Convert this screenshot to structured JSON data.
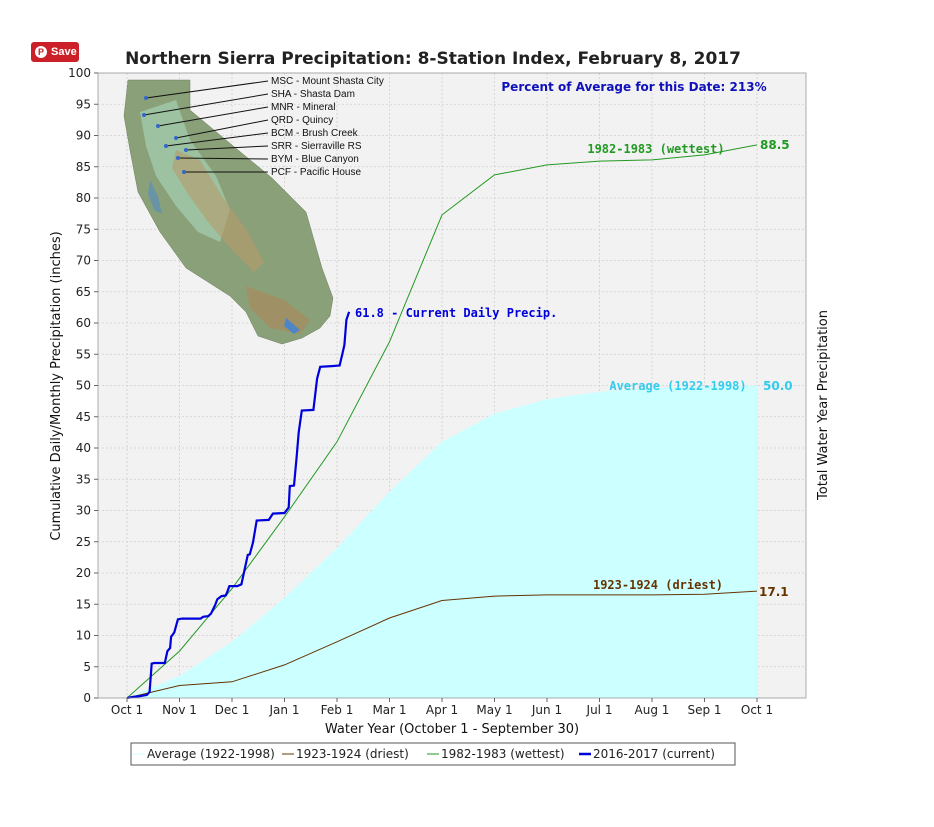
{
  "save_button": {
    "label": "Save",
    "icon": "pinterest-icon"
  },
  "chart_data": {
    "type": "line",
    "title": "Northern Sierra Precipitation: 8-Station Index, February 8, 2017",
    "xlabel": "Water Year (October 1 - September 30)",
    "ylabel": "Cumulative Daily/Monthly Precipitation (inches)",
    "ylabel_right": "Total Water Year Precipitation",
    "x_ticks": [
      "Oct 1",
      "Nov 1",
      "Dec 1",
      "Jan 1",
      "Feb 1",
      "Mar 1",
      "Apr 1",
      "May 1",
      "Jun 1",
      "Jul 1",
      "Aug 1",
      "Sep 1",
      "Oct 1"
    ],
    "ylim": [
      0,
      100
    ],
    "y_ticks": [
      0,
      5,
      10,
      15,
      20,
      25,
      30,
      35,
      40,
      45,
      50,
      55,
      60,
      65,
      70,
      75,
      80,
      85,
      90,
      95,
      100
    ],
    "grid": true,
    "percent_annotation": "Percent of Average for this Date: 213%",
    "series": [
      {
        "name": "Average (1922-1998)",
        "kind": "area",
        "color": "#ccffff",
        "label_color": "#33ccee",
        "curve_label": "Average (1922-1998)",
        "end_label": "50.0",
        "points": [
          [
            0,
            0
          ],
          [
            1,
            3.5
          ],
          [
            2,
            9
          ],
          [
            3,
            16
          ],
          [
            4,
            24
          ],
          [
            5,
            33
          ],
          [
            6,
            41
          ],
          [
            7,
            45.5
          ],
          [
            8,
            47.8
          ],
          [
            9,
            49
          ],
          [
            10,
            49.6
          ],
          [
            11,
            49.9
          ],
          [
            12,
            50.0
          ]
        ]
      },
      {
        "name": "1923-1924 (driest)",
        "kind": "line",
        "color": "#663300",
        "curve_label": "1923-1924 (driest)",
        "end_label": "17.1",
        "points": [
          [
            0,
            0
          ],
          [
            1,
            2
          ],
          [
            2,
            2.6
          ],
          [
            3,
            5.3
          ],
          [
            4,
            9
          ],
          [
            5,
            12.8
          ],
          [
            6,
            15.6
          ],
          [
            7,
            16.3
          ],
          [
            8,
            16.5
          ],
          [
            9,
            16.5
          ],
          [
            10,
            16.5
          ],
          [
            11,
            16.6
          ],
          [
            12,
            17.1
          ]
        ]
      },
      {
        "name": "1982-1983 (wettest)",
        "kind": "line",
        "color": "#229922",
        "curve_label": "1982-1983 (wettest)",
        "end_label": "88.5",
        "points": [
          [
            0,
            0
          ],
          [
            1,
            7.5
          ],
          [
            2,
            17.5
          ],
          [
            3,
            29
          ],
          [
            4,
            41
          ],
          [
            5,
            57
          ],
          [
            6,
            77.3
          ],
          [
            7,
            83.7
          ],
          [
            8,
            85.3
          ],
          [
            9,
            85.9
          ],
          [
            10,
            86.1
          ],
          [
            11,
            86.9
          ],
          [
            12,
            88.5
          ]
        ]
      },
      {
        "name": "2016-2017 (current)",
        "kind": "line",
        "color": "#0000dd",
        "curve_label": "61.8 -  Current Daily Precip.",
        "points": [
          [
            0,
            0
          ],
          [
            0.12,
            0.2
          ],
          [
            0.25,
            0.3
          ],
          [
            0.38,
            0.5
          ],
          [
            0.43,
            1.0
          ],
          [
            0.47,
            5.5
          ],
          [
            0.52,
            5.6
          ],
          [
            0.72,
            5.6
          ],
          [
            0.77,
            7.5
          ],
          [
            0.82,
            8.0
          ],
          [
            0.84,
            9.8
          ],
          [
            0.9,
            10.5
          ],
          [
            0.97,
            12.6
          ],
          [
            1.05,
            12.7
          ],
          [
            1.4,
            12.7
          ],
          [
            1.45,
            13.0
          ],
          [
            1.55,
            13.1
          ],
          [
            1.6,
            13.5
          ],
          [
            1.68,
            14.9
          ],
          [
            1.72,
            15.8
          ],
          [
            1.8,
            16.3
          ],
          [
            1.88,
            16.4
          ],
          [
            1.91,
            17.0
          ],
          [
            1.95,
            17.9
          ],
          [
            2.1,
            17.9
          ],
          [
            2.18,
            18.2
          ],
          [
            2.3,
            22.9
          ],
          [
            2.34,
            23.0
          ],
          [
            2.4,
            24.9
          ],
          [
            2.47,
            28.4
          ],
          [
            2.7,
            28.5
          ],
          [
            2.78,
            29.5
          ],
          [
            3.0,
            29.6
          ],
          [
            3.08,
            30.5
          ],
          [
            3.1,
            33.9
          ],
          [
            3.18,
            34.0
          ],
          [
            3.23,
            38.5
          ],
          [
            3.27,
            42.5
          ],
          [
            3.33,
            46.0
          ],
          [
            3.55,
            46.1
          ],
          [
            3.62,
            51.1
          ],
          [
            3.68,
            53.0
          ],
          [
            3.9,
            53.1
          ],
          [
            4.05,
            53.2
          ],
          [
            4.1,
            55.0
          ],
          [
            4.14,
            56.5
          ],
          [
            4.18,
            60.5
          ],
          [
            4.23,
            61.8
          ]
        ]
      }
    ],
    "legend": {
      "placement": "bottom",
      "entries": [
        "Average (1922-1998)",
        "1923-1924 (driest)",
        "1982-1983 (wettest)",
        "2016-2017 (current)"
      ]
    },
    "map_stations": [
      "MSC - Mount Shasta City",
      "SHA - Shasta Dam",
      "MNR - Mineral",
      "QRD - Quincy",
      "BCM - Brush Creek",
      "SRR - Sierraville RS",
      "BYM - Blue Canyon",
      "PCF - Pacific House"
    ]
  }
}
